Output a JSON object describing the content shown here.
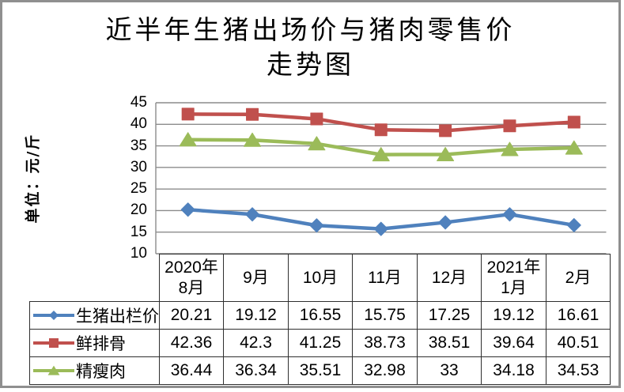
{
  "colors": {
    "background": "#FFFFFF",
    "frame_border": "#8F8F8F",
    "grid": "#8C8C8C",
    "table_border": "#2F2F2F",
    "text": "#000000"
  },
  "chart_data": {
    "type": "line",
    "title_lines": [
      "近半年生猪出场价与猪肉零售价",
      "走势图"
    ],
    "y_axis_title": "单位：元/斤",
    "categories": [
      "2020年\n8月",
      "9月",
      "10月",
      "11月",
      "12月",
      "2021年\n1月",
      "2月"
    ],
    "y_ticks": [
      45,
      40,
      35,
      30,
      25,
      20,
      15,
      10
    ],
    "ylim": [
      10,
      45
    ],
    "grid": true,
    "legend_position": "data-table row labels (bottom left)",
    "series": [
      {
        "name": "生猪出栏价",
        "marker": "diamond",
        "color": "#4F81BD",
        "values": [
          20.21,
          19.12,
          16.55,
          15.75,
          17.25,
          19.12,
          16.61
        ]
      },
      {
        "name": "鲜排骨",
        "marker": "square",
        "color": "#C0504D",
        "values": [
          42.36,
          42.3,
          41.25,
          38.73,
          38.51,
          39.64,
          40.51
        ]
      },
      {
        "name": "精瘦肉",
        "marker": "triangle",
        "color": "#9BBB59",
        "values": [
          36.44,
          36.34,
          35.51,
          32.98,
          33,
          34.18,
          34.53
        ]
      }
    ]
  }
}
